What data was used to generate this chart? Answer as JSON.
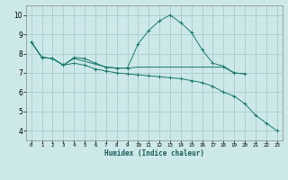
{
  "xlabel": "Humidex (Indice chaleur)",
  "bg_color": "#cce8e8",
  "grid_color": "#aacccc",
  "line_color": "#1a7a6e",
  "xlim": [
    -0.5,
    23.5
  ],
  "ylim": [
    3.5,
    10.5
  ],
  "xticks": [
    0,
    1,
    2,
    3,
    4,
    5,
    6,
    7,
    8,
    9,
    10,
    11,
    12,
    13,
    14,
    15,
    16,
    17,
    18,
    19,
    20,
    21,
    22,
    23
  ],
  "yticks": [
    4,
    5,
    6,
    7,
    8,
    9,
    10
  ],
  "series": [
    {
      "x": [
        0,
        1,
        2,
        3,
        4,
        5,
        6,
        7,
        8,
        9,
        10,
        11,
        12,
        13,
        14,
        15,
        16,
        17,
        18,
        19,
        20
      ],
      "y": [
        8.6,
        7.8,
        7.75,
        7.4,
        7.8,
        7.75,
        7.5,
        7.3,
        7.25,
        7.25,
        8.5,
        9.2,
        9.7,
        10.0,
        9.6,
        9.1,
        8.2,
        7.5,
        7.35,
        7.0,
        6.95
      ],
      "marker": "+"
    },
    {
      "x": [
        0,
        1,
        2,
        3,
        4,
        5,
        6,
        7,
        8,
        9,
        10,
        11,
        12,
        13,
        14,
        15,
        16,
        17,
        18,
        19,
        20
      ],
      "y": [
        8.6,
        7.8,
        7.75,
        7.4,
        7.75,
        7.6,
        7.45,
        7.3,
        7.25,
        7.25,
        7.3,
        7.3,
        7.3,
        7.3,
        7.3,
        7.3,
        7.3,
        7.3,
        7.3,
        7.0,
        6.95
      ],
      "marker": null
    },
    {
      "x": [
        0,
        1,
        2,
        3,
        4,
        5,
        6,
        7,
        8,
        9,
        10,
        11,
        12,
        13,
        14,
        15,
        16,
        17,
        18,
        19,
        20,
        21,
        22,
        23
      ],
      "y": [
        8.6,
        7.8,
        7.75,
        7.4,
        7.5,
        7.4,
        7.2,
        7.1,
        7.0,
        6.95,
        6.9,
        6.85,
        6.8,
        6.75,
        6.7,
        6.6,
        6.5,
        6.3,
        6.0,
        5.8,
        5.4,
        4.8,
        4.4,
        4.0
      ],
      "marker": "+"
    }
  ]
}
